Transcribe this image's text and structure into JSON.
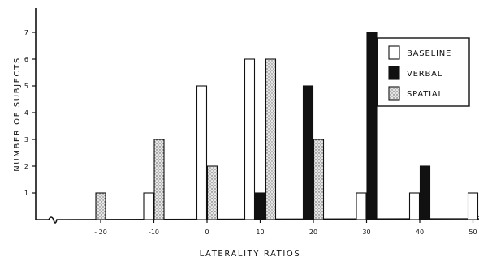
{
  "chart_data": {
    "type": "bar",
    "title": "",
    "xlabel": "LATERALITY RATIOS",
    "ylabel": "NUMBER OF SUBJECTS",
    "ylim": [
      0,
      8
    ],
    "yticks": [
      1,
      2,
      3,
      4,
      5,
      6,
      7
    ],
    "categories": [
      "-20",
      "-10",
      "0",
      "10",
      "20",
      "30",
      "40",
      "50"
    ],
    "grid": false,
    "legend_position": "top-right",
    "series": [
      {
        "name": "BASELINE",
        "color": "#ffffff",
        "pattern": "none",
        "values": [
          0,
          1,
          5,
          6,
          0,
          1,
          1,
          1
        ]
      },
      {
        "name": "VERBAL",
        "color": "#111111",
        "pattern": "solid",
        "values": [
          0,
          0,
          0,
          1,
          5,
          7,
          2,
          0
        ]
      },
      {
        "name": "SPATIAL",
        "color": "#d9d9d9",
        "pattern": "stipple",
        "values": [
          1,
          3,
          2,
          6,
          3,
          0,
          0,
          0
        ]
      }
    ],
    "tick_label_display": [
      "- 20",
      "-10",
      "0",
      "10",
      "20",
      "30",
      "40",
      "50"
    ]
  }
}
